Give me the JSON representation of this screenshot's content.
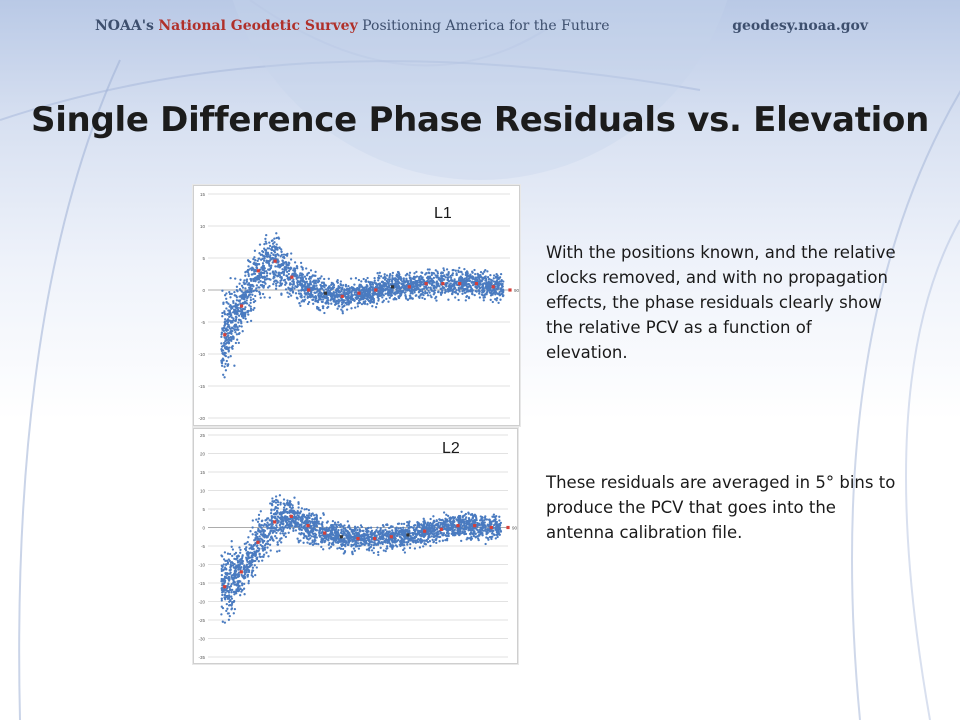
{
  "header": {
    "org_prefix": "NOAA's",
    "org_name": "National Geodetic Survey",
    "tagline": "Positioning America for the Future",
    "site": "geodesy.noaa.gov"
  },
  "title": "Single Difference Phase Residuals vs. Elevation",
  "colors": {
    "scatter": "#4a7bc0",
    "bin_mean": "#d4403a",
    "bin_mean_dark": "#333333",
    "grid": "#d9d9d9"
  },
  "chart_data": [
    {
      "type": "scatter",
      "label": "L1",
      "ylim": [
        -20,
        15
      ],
      "xlim": [
        0,
        90
      ],
      "yticks": [
        15,
        10,
        5,
        0,
        -5,
        -10,
        -15,
        -20
      ],
      "grid": true,
      "x_tick_labels": [
        "90"
      ],
      "bin_means": {
        "x": [
          5,
          10,
          15,
          20,
          25,
          30,
          35,
          40,
          45,
          50,
          55,
          60,
          65,
          70,
          75,
          80,
          85,
          90
        ],
        "y": [
          -7,
          -2.5,
          3,
          4.5,
          2,
          0,
          -0.5,
          -1,
          -0.5,
          0,
          0.5,
          0.5,
          1,
          1,
          1,
          1,
          0.5,
          0
        ]
      },
      "dark_bins_x": [
        35,
        55
      ]
    },
    {
      "type": "scatter",
      "label": "L2",
      "ylim": [
        -35,
        25
      ],
      "xlim": [
        0,
        90
      ],
      "yticks": [
        25,
        20,
        15,
        10,
        5,
        0,
        -5,
        -10,
        -15,
        -20,
        -25,
        -30,
        -35
      ],
      "grid": true,
      "x_tick_labels": [
        "90"
      ],
      "bin_means": {
        "x": [
          5,
          10,
          15,
          20,
          25,
          30,
          35,
          40,
          45,
          50,
          55,
          60,
          65,
          70,
          75,
          80,
          85,
          90
        ],
        "y": [
          -16,
          -12,
          -4,
          1.5,
          3,
          0.5,
          -1.5,
          -2.5,
          -3,
          -3,
          -2.5,
          -2,
          -1,
          -0.5,
          0.5,
          0.5,
          0,
          0
        ]
      },
      "dark_bins_x": [
        40,
        60
      ]
    }
  ],
  "text": {
    "para1": "With the positions known, and the relative clocks removed, and with no propagation effects, the phase residuals clearly show the relative PCV as a function of elevation.",
    "para2": "These residuals are averaged in 5° bins to produce the PCV that goes into the antenna calibration file."
  }
}
